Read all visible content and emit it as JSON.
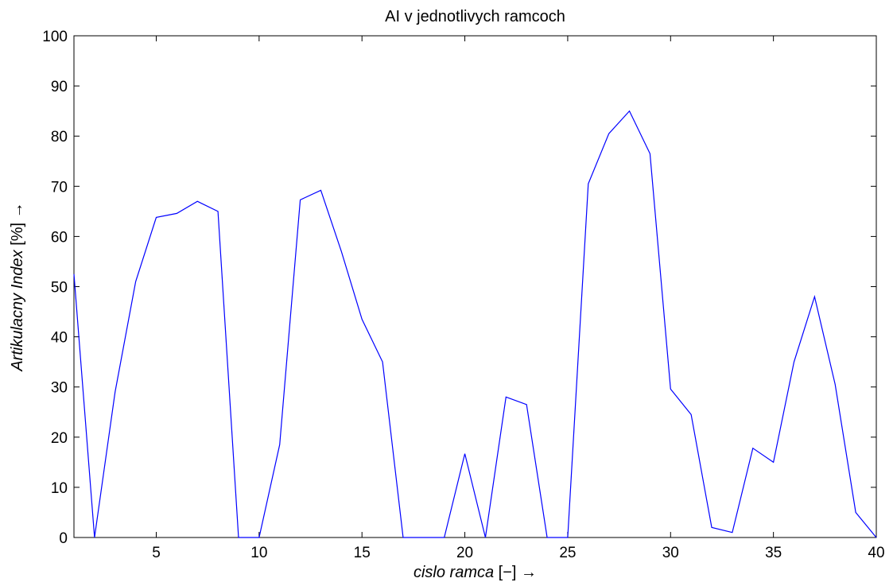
{
  "chart_data": {
    "type": "line",
    "title": "AI v jednotlivych ramcoch",
    "xlabel": {
      "italic": "cislo ramca",
      "suffix": " [−] →"
    },
    "ylabel": {
      "italic": "Artikulacny Index",
      "suffix": " [%] →"
    },
    "xlim": [
      1,
      40
    ],
    "ylim": [
      0,
      100
    ],
    "xticks": [
      5,
      10,
      15,
      20,
      25,
      30,
      35,
      40
    ],
    "yticks": [
      0,
      10,
      20,
      30,
      40,
      50,
      60,
      70,
      80,
      90,
      100
    ],
    "grid": false,
    "line_color": "#0000ff",
    "series": [
      {
        "x": [
          1,
          2,
          3,
          4,
          5,
          6,
          7,
          8,
          9,
          10,
          11,
          12,
          13,
          14,
          15,
          16,
          17,
          18,
          19,
          20,
          21,
          22,
          23,
          24,
          25,
          26,
          27,
          28,
          29,
          30,
          31,
          32,
          33,
          34,
          35,
          36,
          37,
          38,
          39,
          40
        ],
        "y": [
          52.5,
          0,
          29,
          51,
          63.8,
          64.6,
          67,
          65,
          0,
          0,
          18.5,
          67.3,
          69.2,
          57,
          43.5,
          35,
          0,
          0,
          0,
          16.7,
          0,
          28,
          26.5,
          0,
          0,
          70.5,
          80.5,
          85,
          76.5,
          29.6,
          24.5,
          2,
          1,
          17.8,
          15,
          35,
          48,
          30.5,
          5,
          0
        ]
      }
    ]
  }
}
